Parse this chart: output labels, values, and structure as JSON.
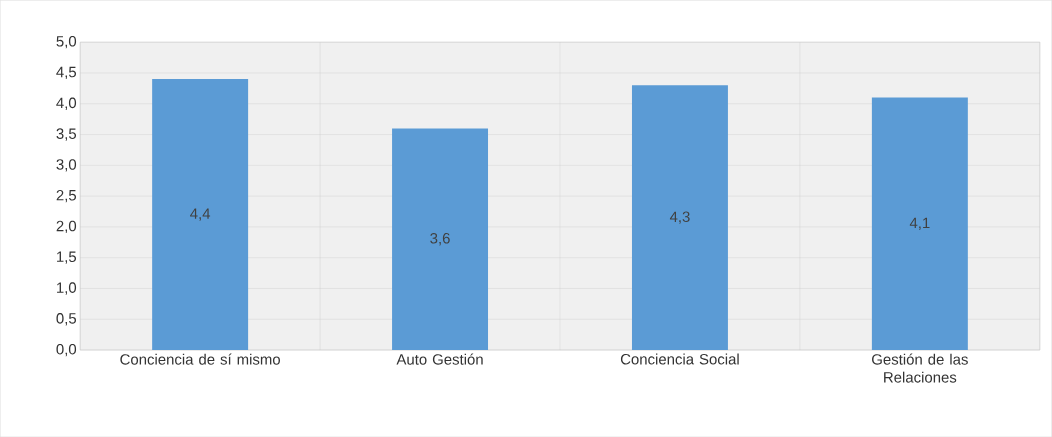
{
  "chart_data": {
    "type": "bar",
    "categories": [
      "Conciencia de sí mismo",
      "Auto Gestión",
      "Conciencia Social",
      "Gestión de las Relaciones"
    ],
    "values": [
      4.4,
      3.6,
      4.3,
      4.1
    ],
    "value_labels": [
      "4,4",
      "3,6",
      "4,3",
      "4,1"
    ],
    "color": "#5b9bd5",
    "ylim": [
      0,
      5
    ],
    "yticks": [
      {
        "value": 0,
        "label": "0,0"
      },
      {
        "value": 0.5,
        "label": "0,5"
      },
      {
        "value": 1,
        "label": "1,0"
      },
      {
        "value": 1.5,
        "label": "1,5"
      },
      {
        "value": 2,
        "label": "2,0"
      },
      {
        "value": 2.5,
        "label": "2,5"
      },
      {
        "value": 3,
        "label": "3,0"
      },
      {
        "value": 3.5,
        "label": "3,5"
      },
      {
        "value": 4,
        "label": "4,0"
      },
      {
        "value": 4.5,
        "label": "4,5"
      },
      {
        "value": 5,
        "label": "5,0"
      }
    ],
    "grid": true
  }
}
